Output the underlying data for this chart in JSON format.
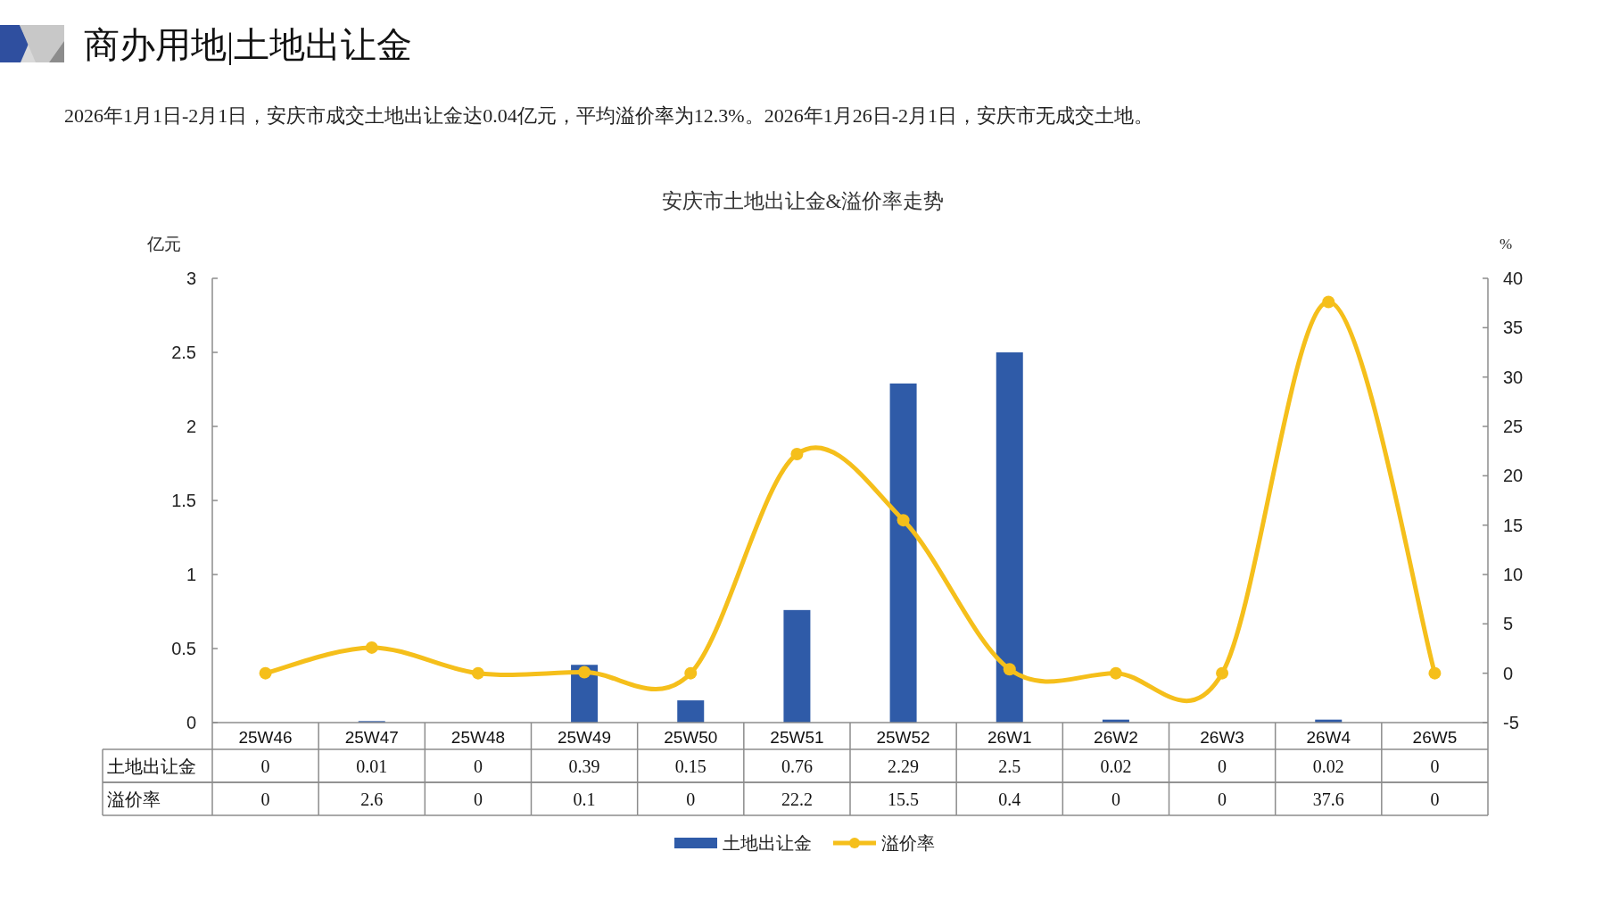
{
  "chart_data": {
    "type": "bar",
    "title": "商办用地|土地出让金",
    "subtitle": "安庆市土地出让金&溢价率走势",
    "annotations": [
      "2026年1月1日-2月1日，安庆市成交土地出让金达0.04亿元，平均溢价率为12.3%。2026年1月26日-2月1日，安庆市无成交土地。"
    ],
    "ylabel": "亿元",
    "y2label": "%",
    "categories": [
      "25W46",
      "25W47",
      "25W48",
      "25W49",
      "25W50",
      "25W51",
      "25W52",
      "26W1",
      "26W2",
      "26W3",
      "26W4",
      "26W5"
    ],
    "series": [
      {
        "name": "土地出让金",
        "color": "#2f5ba8",
        "values": [
          0,
          0.01,
          0,
          0.39,
          0.15,
          0.76,
          2.29,
          2.5,
          0.02,
          0,
          0.02,
          0
        ]
      },
      {
        "name": "溢价率",
        "type": "line",
        "axis": "y2",
        "color": "#f5bf1b",
        "marker": "circle",
        "values": [
          0,
          2.6,
          0,
          0.1,
          0,
          22.2,
          15.5,
          0.4,
          0,
          0,
          37.6,
          0
        ]
      }
    ],
    "ylim": [
      0,
      3
    ],
    "yticks": [
      0,
      0.5,
      1,
      1.5,
      2,
      2.5,
      3
    ],
    "y2lim": [
      -5,
      40
    ],
    "y2ticks": [
      -5,
      0,
      5,
      10,
      15,
      20,
      25,
      30,
      35,
      40
    ],
    "data_labels": true,
    "legend": "bottom"
  }
}
